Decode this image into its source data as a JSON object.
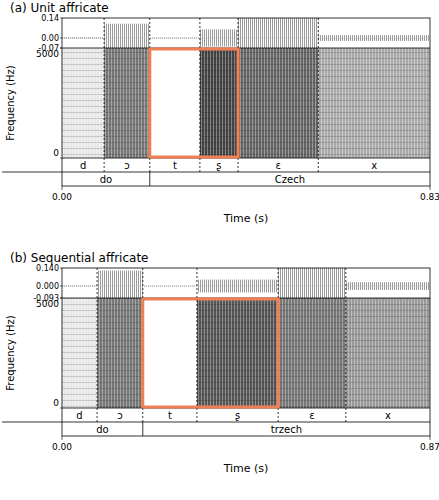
{
  "chart_data": [
    {
      "type": "spectrogram",
      "title": "(a) Unit affricate",
      "xlabel": "Time (s)",
      "ylabel": "Frequency (Hz)",
      "xlim": [
        0,
        0.83
      ],
      "xticks": [
        {
          "value": 0,
          "label": "0.00"
        },
        {
          "value": 0.83,
          "label": "0.83"
        }
      ],
      "ylim": [
        0,
        5000
      ],
      "yticks": [
        0,
        5000
      ],
      "y2lim": [
        -0.07,
        0.14
      ],
      "y2ticks": [
        {
          "value": 0.14,
          "label": "0.14"
        },
        {
          "value": 0,
          "label": "0.00"
        },
        {
          "value": -0.07,
          "label": "-0.07"
        }
      ],
      "phones": {
        "labels": [
          "d",
          "ɔ",
          "t",
          "ʂ",
          "ɛ",
          "x"
        ],
        "starts": [
          0,
          0.095,
          0.198,
          0.311,
          0.397,
          0.578
        ],
        "ends": [
          0.095,
          0.198,
          0.311,
          0.397,
          0.578,
          0.83
        ],
        "amplitudes": [
          0.005,
          0.1,
          0.003,
          0.06,
          0.14,
          0.02
        ],
        "colors": [
          "#e8e8e8",
          "#777777",
          "#ffffff",
          "#444444",
          "#666666",
          "#aaaaaa"
        ]
      },
      "words": {
        "labels": [
          "do",
          "Czech"
        ],
        "starts": [
          0,
          0.198
        ],
        "ends": [
          0.198,
          0.83
        ]
      },
      "highlight": {
        "start": 0.198,
        "end": 0.397,
        "color": "#f07f56"
      }
    },
    {
      "type": "spectrogram",
      "title": "(b) Sequential affricate",
      "xlabel": "Time (s)",
      "ylabel": "Frequency (Hz)",
      "xlim": [
        0,
        0.87
      ],
      "xticks": [
        {
          "value": 0,
          "label": "0.00"
        },
        {
          "value": 0.87,
          "label": "0.87"
        }
      ],
      "ylim": [
        0,
        5000
      ],
      "yticks": [
        0,
        5000
      ],
      "y2lim": [
        -0.093,
        0.14
      ],
      "y2ticks": [
        {
          "value": 0.14,
          "label": "0.140"
        },
        {
          "value": 0,
          "label": "0.000"
        },
        {
          "value": -0.093,
          "label": "-0.093"
        }
      ],
      "phones": {
        "labels": [
          "d",
          "ɔ",
          "t",
          "ʂ",
          "ɛ",
          "x"
        ],
        "starts": [
          0,
          0.083,
          0.191,
          0.319,
          0.511,
          0.671
        ],
        "ends": [
          0.083,
          0.191,
          0.319,
          0.511,
          0.671,
          0.87
        ],
        "amplitudes": [
          0.005,
          0.12,
          0.003,
          0.05,
          0.14,
          0.03
        ],
        "colors": [
          "#e8e8e8",
          "#777777",
          "#ffffff",
          "#555555",
          "#777777",
          "#999999"
        ]
      },
      "words": {
        "labels": [
          "do",
          "trzech"
        ],
        "starts": [
          0,
          0.191
        ],
        "ends": [
          0.191,
          0.87
        ]
      },
      "highlight": {
        "start": 0.191,
        "end": 0.511,
        "color": "#f07f56"
      }
    }
  ]
}
